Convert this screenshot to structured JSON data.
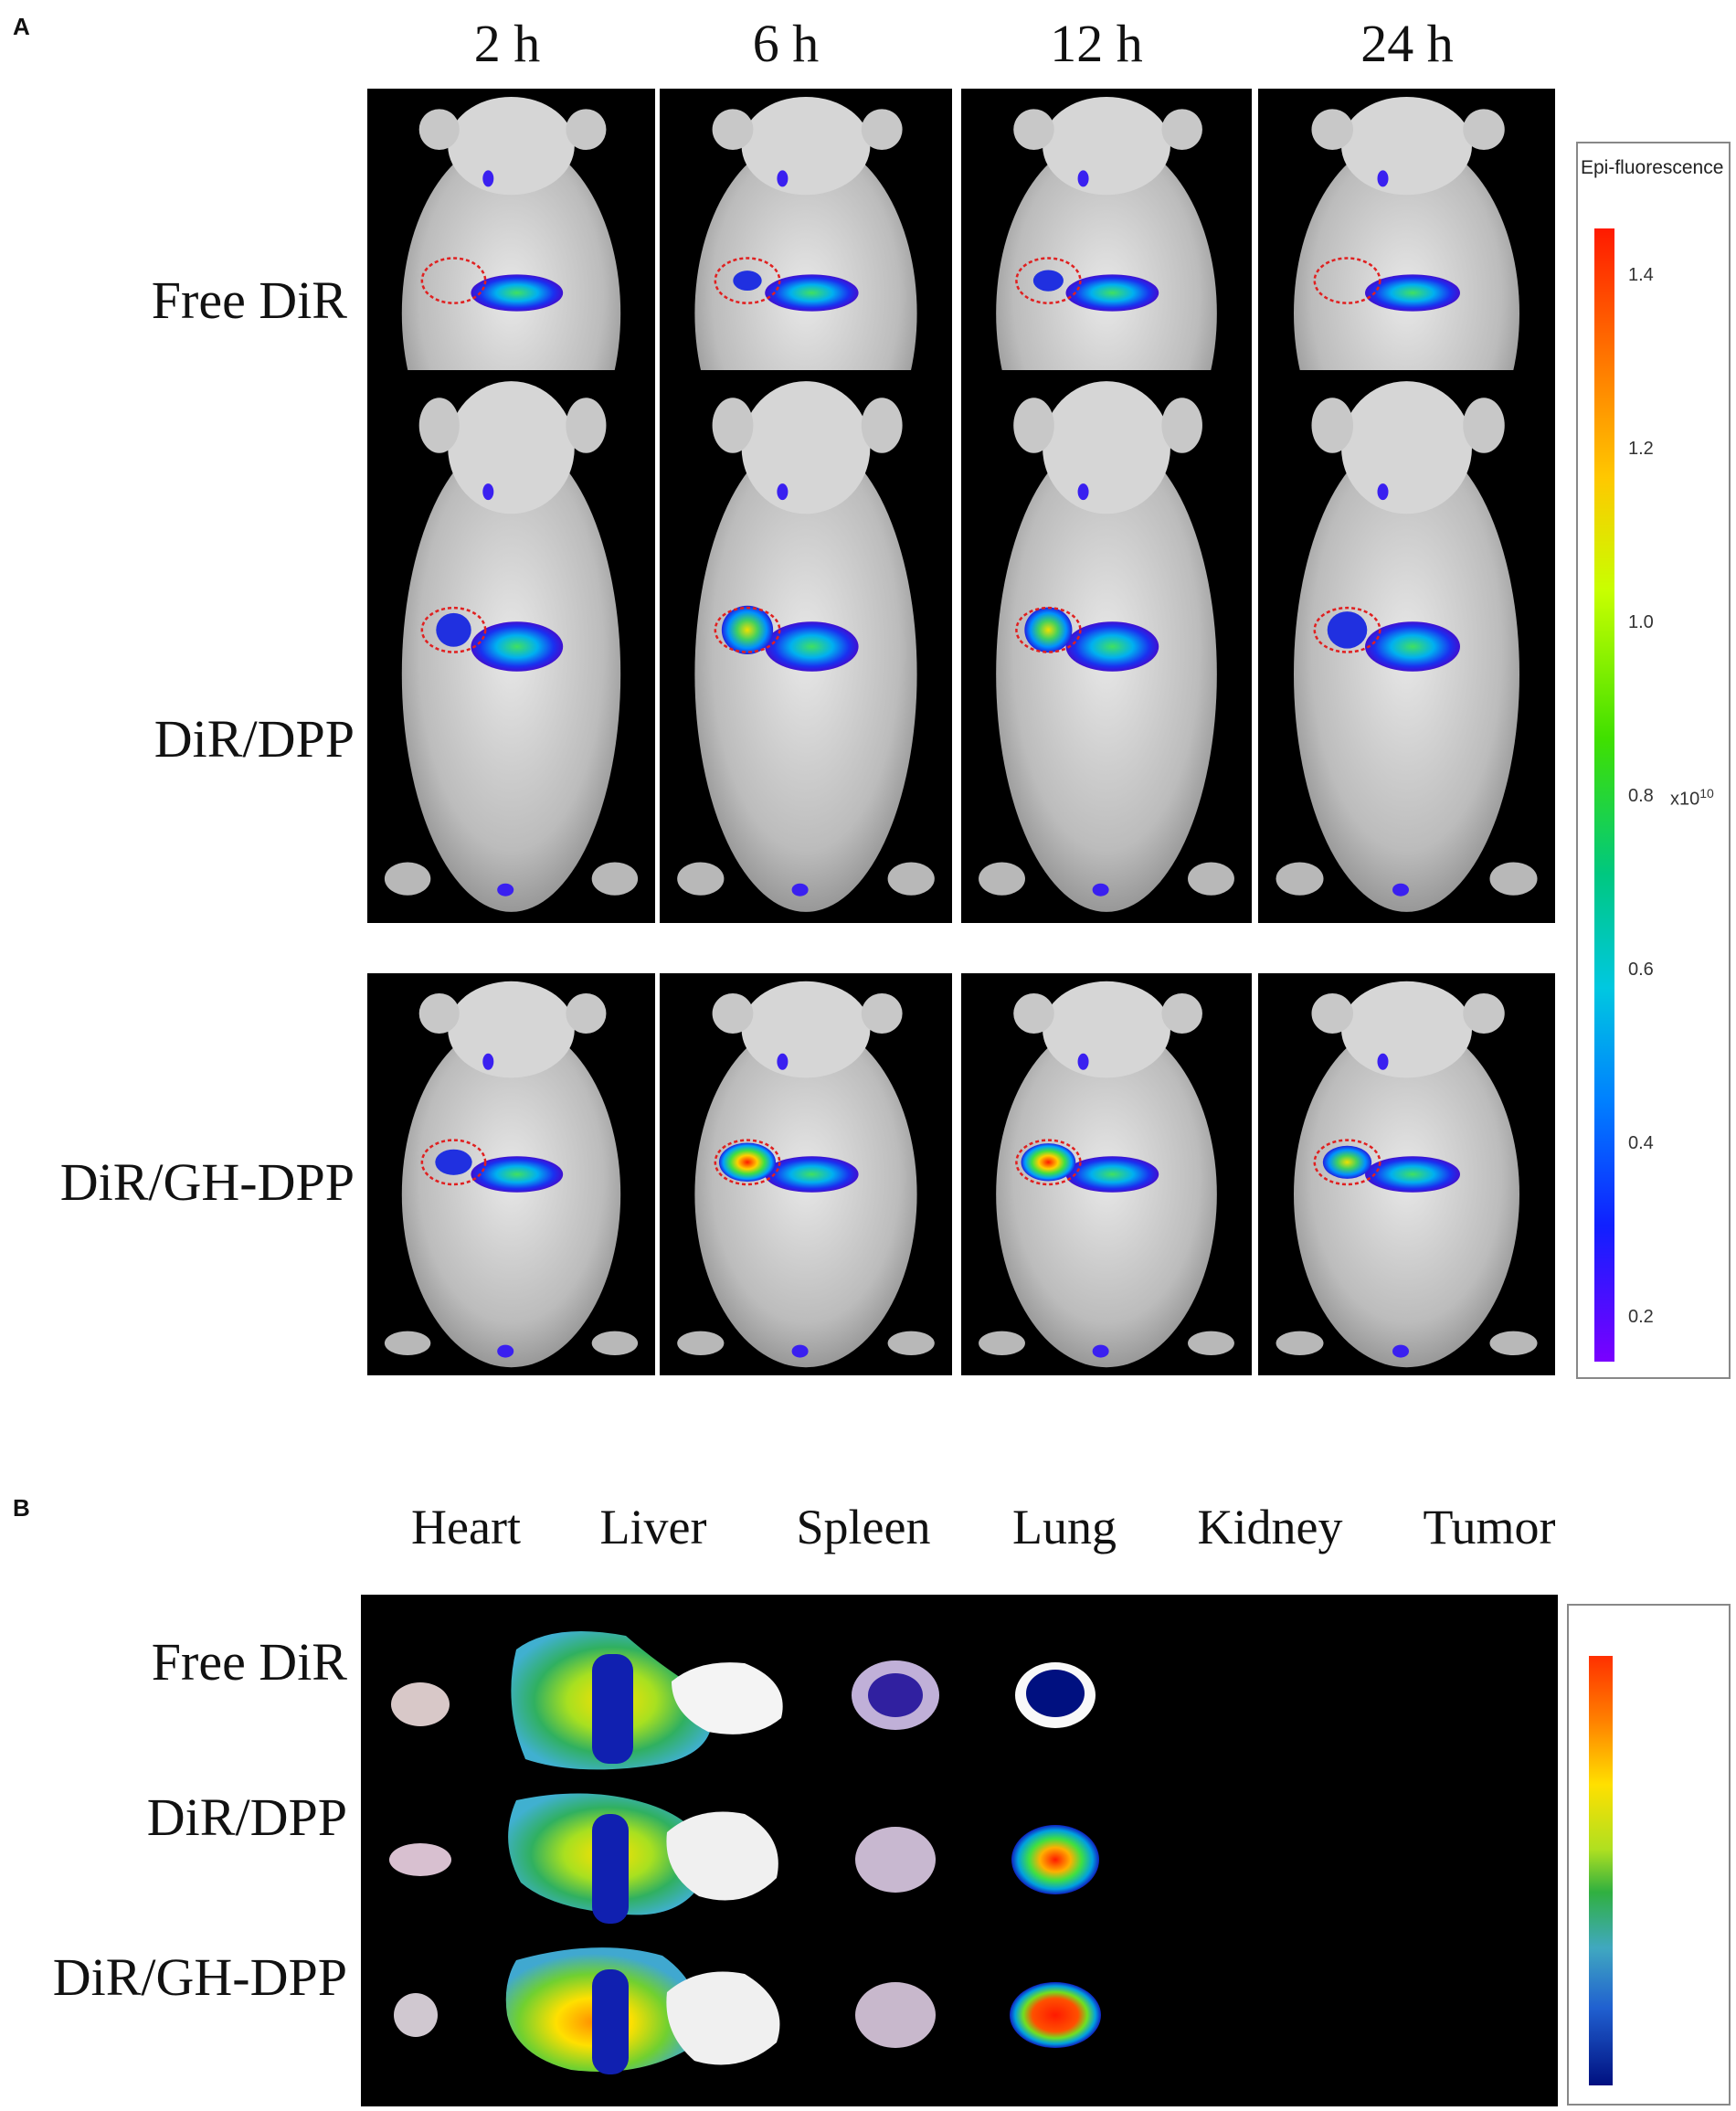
{
  "panelA": {
    "letter": "A",
    "timepoints": [
      "2 h",
      "6 h",
      "12 h",
      "24 h"
    ],
    "groups": [
      "Free DiR",
      "DiR/DPP",
      "DiR/GH-DPP"
    ],
    "colorbar": {
      "title": "Epi-fluorescence",
      "ticks": [
        "1.4",
        "1.2",
        "1.0",
        "0.8",
        "0.6",
        "0.4",
        "0.2"
      ],
      "unit_base": "x10",
      "unit_exp": "10"
    }
  },
  "panelB": {
    "letter": "B",
    "organs": [
      "Heart",
      "Liver",
      "Spleen",
      "Lung",
      "Kidney",
      "Tumor"
    ],
    "groups": [
      "Free DiR",
      "DiR/DPP",
      "DiR/GH-DPP"
    ]
  },
  "colors": {
    "background": "#000000",
    "circle": "#e02020",
    "scale_low": "#7a00ff",
    "scale_high": "#ff1a00"
  }
}
